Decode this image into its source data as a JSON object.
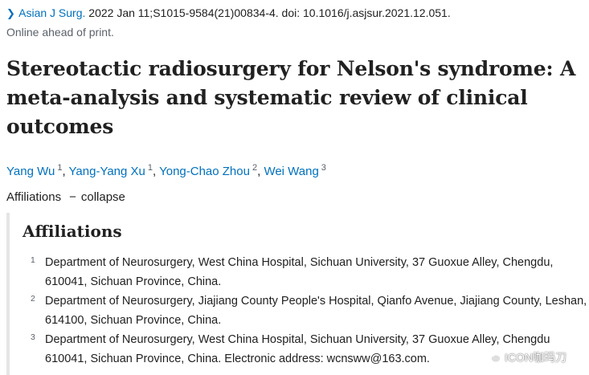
{
  "citation": {
    "journal": "Asian J Surg.",
    "details": "2022 Jan 11;S1015-9584(21)00834-4. doi: 10.1016/j.asjsur.2021.12.051.",
    "epub_status": "Online ahead of print."
  },
  "title": "Stereotactic radiosurgery for Nelson's syndrome: A meta-analysis and systematic review of clinical outcomes",
  "authors": [
    {
      "name": "Yang Wu",
      "aff": "1"
    },
    {
      "name": "Yang-Yang Xu",
      "aff": "1"
    },
    {
      "name": "Yong-Chao Zhou",
      "aff": "2"
    },
    {
      "name": "Wei Wang",
      "aff": "3"
    }
  ],
  "affiliations_toggle": {
    "label": "Affiliations",
    "dash": "−",
    "action": "collapse"
  },
  "affiliations": {
    "heading": "Affiliations",
    "items": [
      {
        "num": "1",
        "text": "Department of Neurosurgery, West China Hospital, Sichuan University, 37 Guoxue Alley, Chengdu, 610041, Sichuan Province, China."
      },
      {
        "num": "2",
        "text": "Department of Neurosurgery, Jiajiang County People's Hospital, Qianfo Avenue, Jiajiang County, Leshan, 614100, Sichuan Province, China."
      },
      {
        "num": "3",
        "text": "Department of Neurosurgery, West China Hospital, Sichuan University, 37 Guoxue Alley, Chengdu 610041, Sichuan Province, China. Electronic address: wcnsww@163.com."
      }
    ]
  },
  "watermark": {
    "text": "ICON咖玛刀",
    "icon": "wechat-icon"
  },
  "colors": {
    "link": "#0071bc",
    "text": "#212121",
    "muted": "#5b616b",
    "panel_border": "#e5e5e5"
  }
}
